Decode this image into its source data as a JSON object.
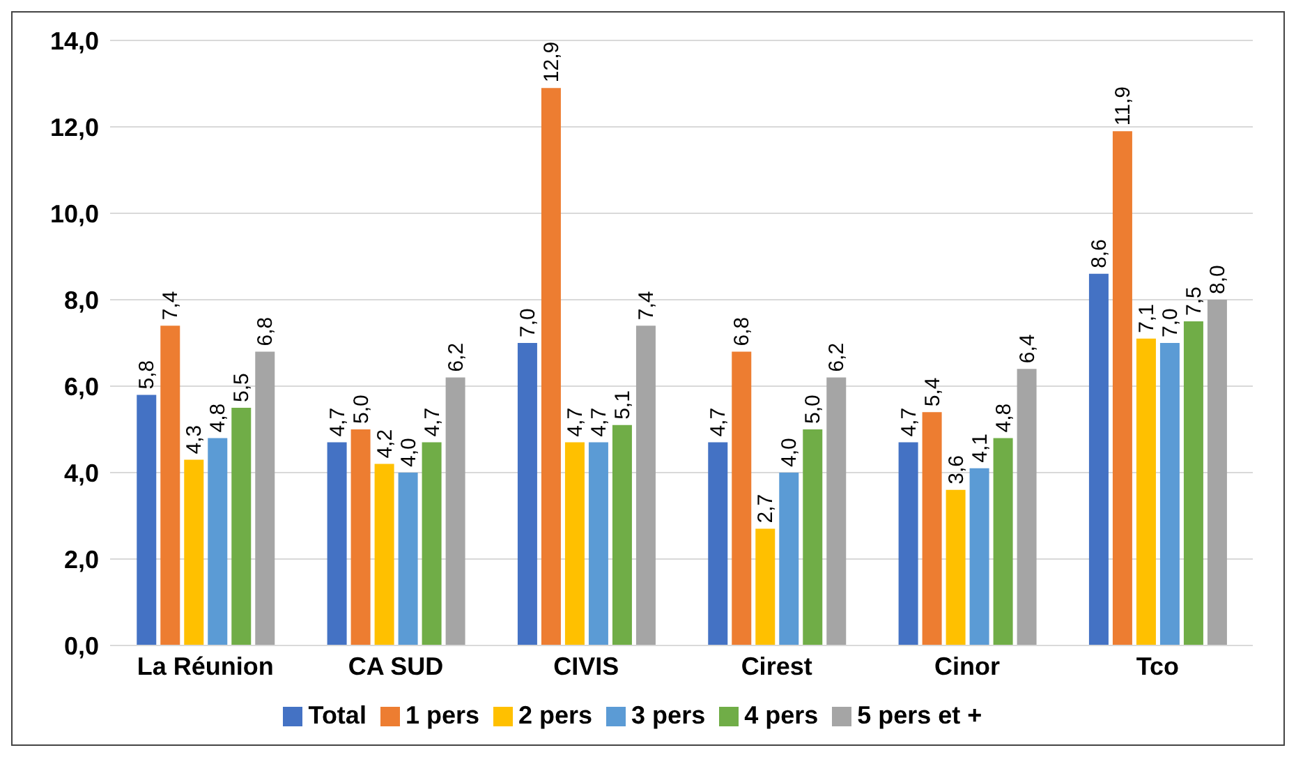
{
  "chart_data": {
    "type": "bar",
    "categories": [
      "La Réunion",
      "CA SUD",
      "CIVIS",
      "Cirest",
      "Cinor",
      "Tco"
    ],
    "series": [
      {
        "name": "Total",
        "color": "#4472c4",
        "values": [
          5.8,
          4.7,
          7.0,
          4.7,
          4.7,
          8.6
        ],
        "value_labels": [
          "5,8",
          "4,7",
          "7,0",
          "4,7",
          "4,7",
          "8,6"
        ]
      },
      {
        "name": "1 pers",
        "color": "#ed7d31",
        "values": [
          7.4,
          5.0,
          12.9,
          6.8,
          5.4,
          11.9
        ],
        "value_labels": [
          "7,4",
          "5,0",
          "12,9",
          "6,8",
          "5,4",
          "11,9"
        ]
      },
      {
        "name": "2 pers",
        "color": "#ffc000",
        "values": [
          4.3,
          4.2,
          4.7,
          2.7,
          3.6,
          7.1
        ],
        "value_labels": [
          "4,3",
          "4,2",
          "4,7",
          "2,7",
          "3,6",
          "7,1"
        ]
      },
      {
        "name": "3 pers",
        "color": "#5b9bd5",
        "values": [
          4.8,
          4.0,
          4.7,
          4.0,
          4.1,
          7.0
        ],
        "value_labels": [
          "4,8",
          "4,0",
          "4,7",
          "4,0",
          "4,1",
          "7,0"
        ]
      },
      {
        "name": "4 pers",
        "color": "#70ad47",
        "values": [
          5.5,
          4.7,
          5.1,
          5.0,
          4.8,
          7.5
        ],
        "value_labels": [
          "5,5",
          "4,7",
          "5,1",
          "5,0",
          "4,8",
          "7,5"
        ]
      },
      {
        "name": "5 pers et +",
        "color": "#a5a5a5",
        "values": [
          6.8,
          6.2,
          7.4,
          6.2,
          6.4,
          8.0
        ],
        "value_labels": [
          "6,8",
          "6,2",
          "7,4",
          "6,2",
          "6,4",
          "8,0"
        ]
      }
    ],
    "ylim": [
      0,
      14
    ],
    "yticks": [
      {
        "value": 0,
        "label": "0,0"
      },
      {
        "value": 2,
        "label": "2,0"
      },
      {
        "value": 4,
        "label": "4,0"
      },
      {
        "value": 6,
        "label": "6,0"
      },
      {
        "value": 8,
        "label": "8,0"
      },
      {
        "value": 10,
        "label": "10,0"
      },
      {
        "value": 12,
        "label": "12,0"
      },
      {
        "value": 14,
        "label": "14,0"
      }
    ],
    "grid": "y",
    "legend": "bottom"
  }
}
